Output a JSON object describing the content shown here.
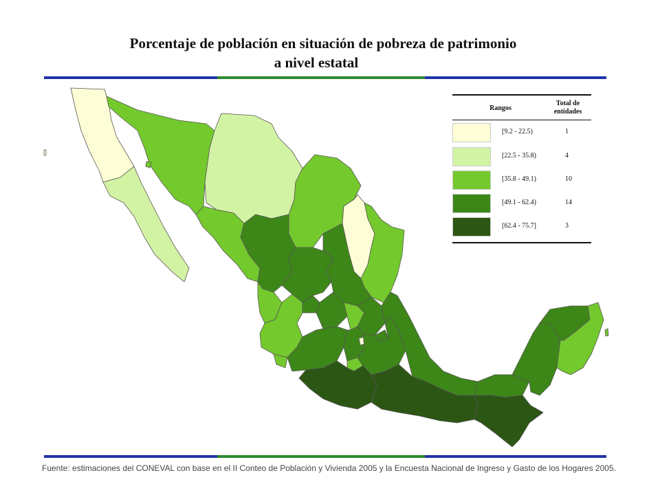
{
  "title_line1": "Porcentaje de población en situación de pobreza de patrimonio",
  "title_line2": "a nivel estatal",
  "rule_colors": {
    "blue": "#2233aa",
    "green": "#2e8b2e"
  },
  "legend": {
    "header_ranges": "Rangos",
    "header_total_1": "Total de",
    "header_total_2": "entidades",
    "items": [
      {
        "range": "[9.2 - 22.5)",
        "count": "1",
        "color": "#fdfdd6"
      },
      {
        "range": "[22.5 - 35.8)",
        "count": "4",
        "color": "#d3f3a4"
      },
      {
        "range": "[35.8 - 49.1)",
        "count": "10",
        "color": "#74c92d"
      },
      {
        "range": "[49.1 - 62.4)",
        "count": "14",
        "color": "#3d8718"
      },
      {
        "range": "[62.4 - 75.7]",
        "count": "3",
        "color": "#2c5614"
      }
    ]
  },
  "footer": "Fuente: estimaciones del CONEVAL con base en el II Conteo de Población y Vivienda 2005 y la Encuesta Nacional de Ingreso y Gasto de los Hogares 2005."
}
